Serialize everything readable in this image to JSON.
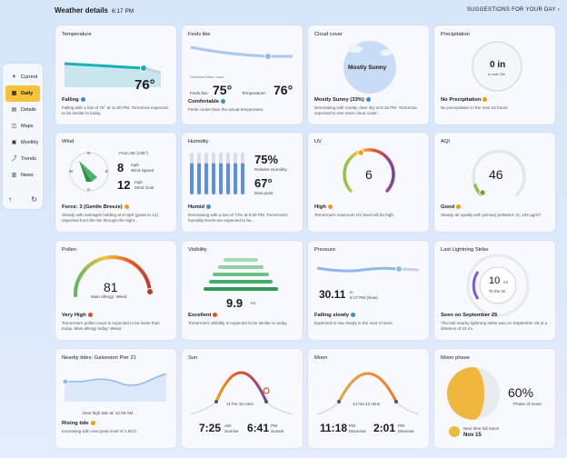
{
  "header": {
    "title": "Weather details",
    "time": "6:17 PM",
    "suggestions": "SUGGESTIONS FOR YOUR DAY"
  },
  "sidebar": {
    "items": [
      {
        "label": "Current",
        "icon": "sun-icon"
      },
      {
        "label": "Daily",
        "icon": "calendar-icon"
      },
      {
        "label": "Details",
        "icon": "details-icon"
      },
      {
        "label": "Maps",
        "icon": "map-icon"
      },
      {
        "label": "Monthly",
        "icon": "monthly-icon"
      },
      {
        "label": "Trends",
        "icon": "trends-icon"
      },
      {
        "label": "News",
        "icon": "news-icon"
      }
    ],
    "active": "Daily"
  },
  "colors": {
    "accent": "#f6c23a",
    "badge_blue": "#3a8fd9",
    "badge_orange": "#f39c12",
    "badge_red": "#e0501e",
    "badge_green": "#8bc34a"
  },
  "cards": {
    "temperature": {
      "title": "Temperature",
      "value": "76°",
      "summary": "Falling",
      "desc": "Falling with a low of 75° at 11:00 PM. Tomorrow expected to be similar to today."
    },
    "feels": {
      "title": "Feels like",
      "dominant": "Dominant factor: none",
      "feels_label": "Feels like:",
      "feels_value": "75°",
      "temp_label": "Temperature:",
      "temp_value": "76°",
      "summary": "Comfortable",
      "desc": "Feels cooler than the actual temperature."
    },
    "cloud": {
      "title": "Cloud cover",
      "center": "Mostly Sunny",
      "summary": "Mostly Sunny (33%)",
      "desc": "Decreasing with mostly clear sky at 6:16 PM. Tomorrow expected to see more cloud cover..."
    },
    "precip": {
      "title": "Precipitation",
      "value": "0 in",
      "sub": "In next 24h",
      "summary": "No Precipitation",
      "desc": "No precipitation in the next 24 hours."
    },
    "wind": {
      "title": "Wind",
      "from": "From SE (135°)",
      "speed": "8",
      "speed_unit": "mph",
      "speed_label": "Wind Speed",
      "gust": "12",
      "gust_unit": "mph",
      "gust_label": "Wind Gust",
      "n": "N",
      "e": "E",
      "s": "S",
      "w": "W",
      "summary": "Force: 3 (Gentle Breeze)",
      "desc": "Steady with averages holding at 8 mph (gusts to 12) expected from the SE through the night..."
    },
    "humidity": {
      "title": "Humidity",
      "value": "75%",
      "label": "Relative Humidity",
      "dew": "67°",
      "dew_label": "Dew point",
      "summary": "Humid",
      "desc": "Decreasing with a low of 74% at 8:00 PM. Tomorrow's humidity levels are expected to be..."
    },
    "uv": {
      "title": "UV",
      "value": "6",
      "level": 0.55,
      "summary": "High",
      "desc": "Tomorrow's maximum UV level will be high."
    },
    "aqi": {
      "title": "AQI",
      "value": "46",
      "level": 0.18,
      "summary": "Good",
      "desc": "Steady air quality with primary pollutant: O₃ 104 µg/m³."
    },
    "pollen": {
      "title": "Pollen",
      "value": "81",
      "label": "Main Allergy: Weed",
      "level": 0.95,
      "summary": "Very High",
      "desc": "Tomorrow's pollen count is expected to be lower than today. Main allergy today: Weed."
    },
    "visibility": {
      "title": "Visibility",
      "value": "9.9",
      "unit": "mi",
      "summary": "Excellent",
      "desc": "Tomorrow's visibility is expected to be similar to today."
    },
    "pressure": {
      "title": "Pressure",
      "value": "30.11",
      "unit": "in",
      "time": "6:17 PM (Now)",
      "summary": "Falling slowly",
      "desc": "Expected to rise slowly in the next 3 hours."
    },
    "lightning": {
      "title": "Last Lightning Strike",
      "value": "10",
      "unit": "mi",
      "direction": "To the W",
      "summary": "Seen on September 25",
      "desc": "The last nearby lightning strike was on September 25 at a distance of 10 mi."
    },
    "tides": {
      "title": "Nearby tides: Galveston Pier 21",
      "next": "Next high tide at: 12:46 AM.",
      "summary": "Rising tide",
      "desc": "Increasing with next peak level of 1.98 ft."
    },
    "sun": {
      "title": "Sun",
      "duration": "11 hrs 15 mins",
      "rise": "7:25",
      "rise_ampm": "AM",
      "rise_label": "Sunrise",
      "set": "6:41",
      "set_ampm": "PM",
      "set_label": "Sunset"
    },
    "moon": {
      "title": "Moon",
      "duration": "14 hrs 43 mins",
      "rise": "11:18",
      "rise_ampm": "PM",
      "rise_label": "Moonrise",
      "set": "2:01",
      "set_ampm": "PM",
      "set_label": "Moonset"
    },
    "moonphase": {
      "title": "Moon phase",
      "value": "60%",
      "label": "Phase of moon",
      "next_label": "Next time full moon",
      "next_date": "Nov 15"
    }
  }
}
